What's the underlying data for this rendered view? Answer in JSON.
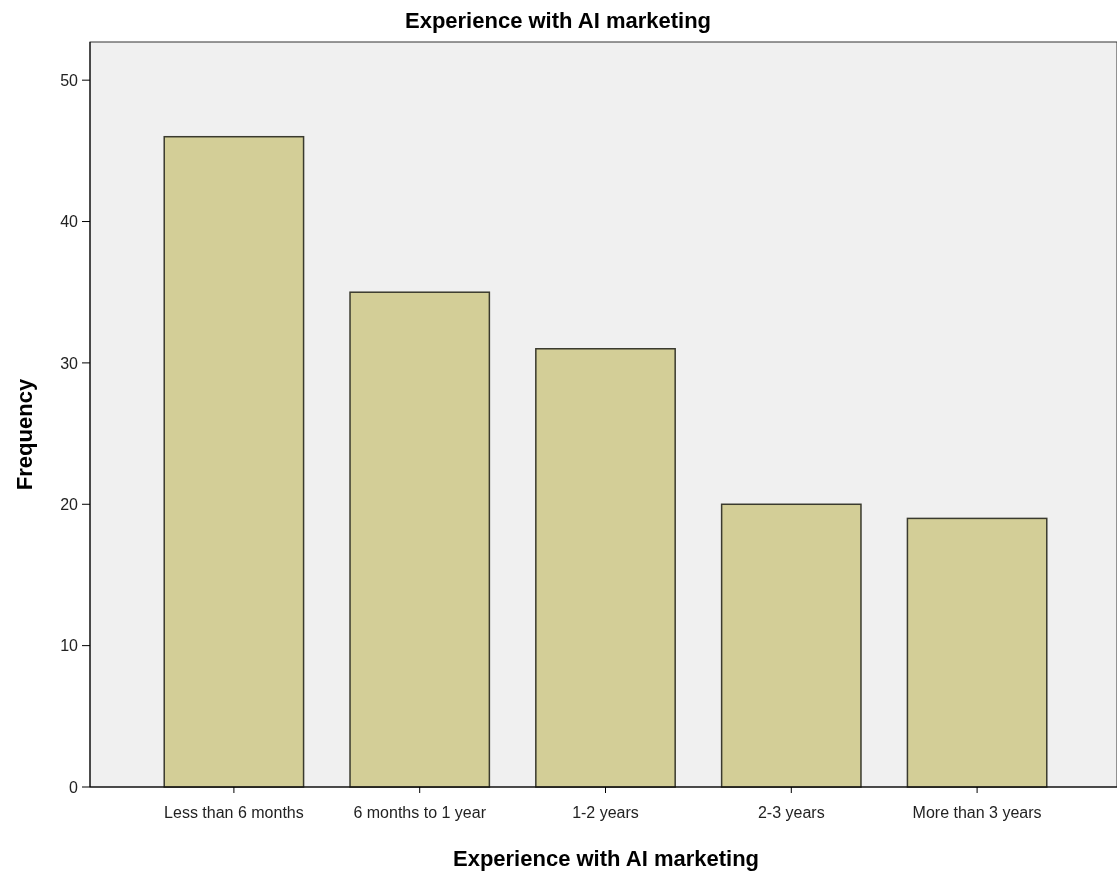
{
  "chart_data": {
    "type": "bar",
    "title": "Experience with AI marketing",
    "xlabel": "Experience with AI marketing",
    "ylabel": "Frequency",
    "categories": [
      "Less than 6 months",
      "6 months to 1 year",
      "1-2 years",
      "2-3 years",
      "More than 3 years"
    ],
    "values": [
      46,
      35,
      31,
      20,
      19
    ],
    "color": "#d3ce97",
    "ylim": [
      0,
      52.7
    ],
    "yticks": [
      0,
      10,
      20,
      30,
      40,
      50
    ],
    "grid": false
  }
}
